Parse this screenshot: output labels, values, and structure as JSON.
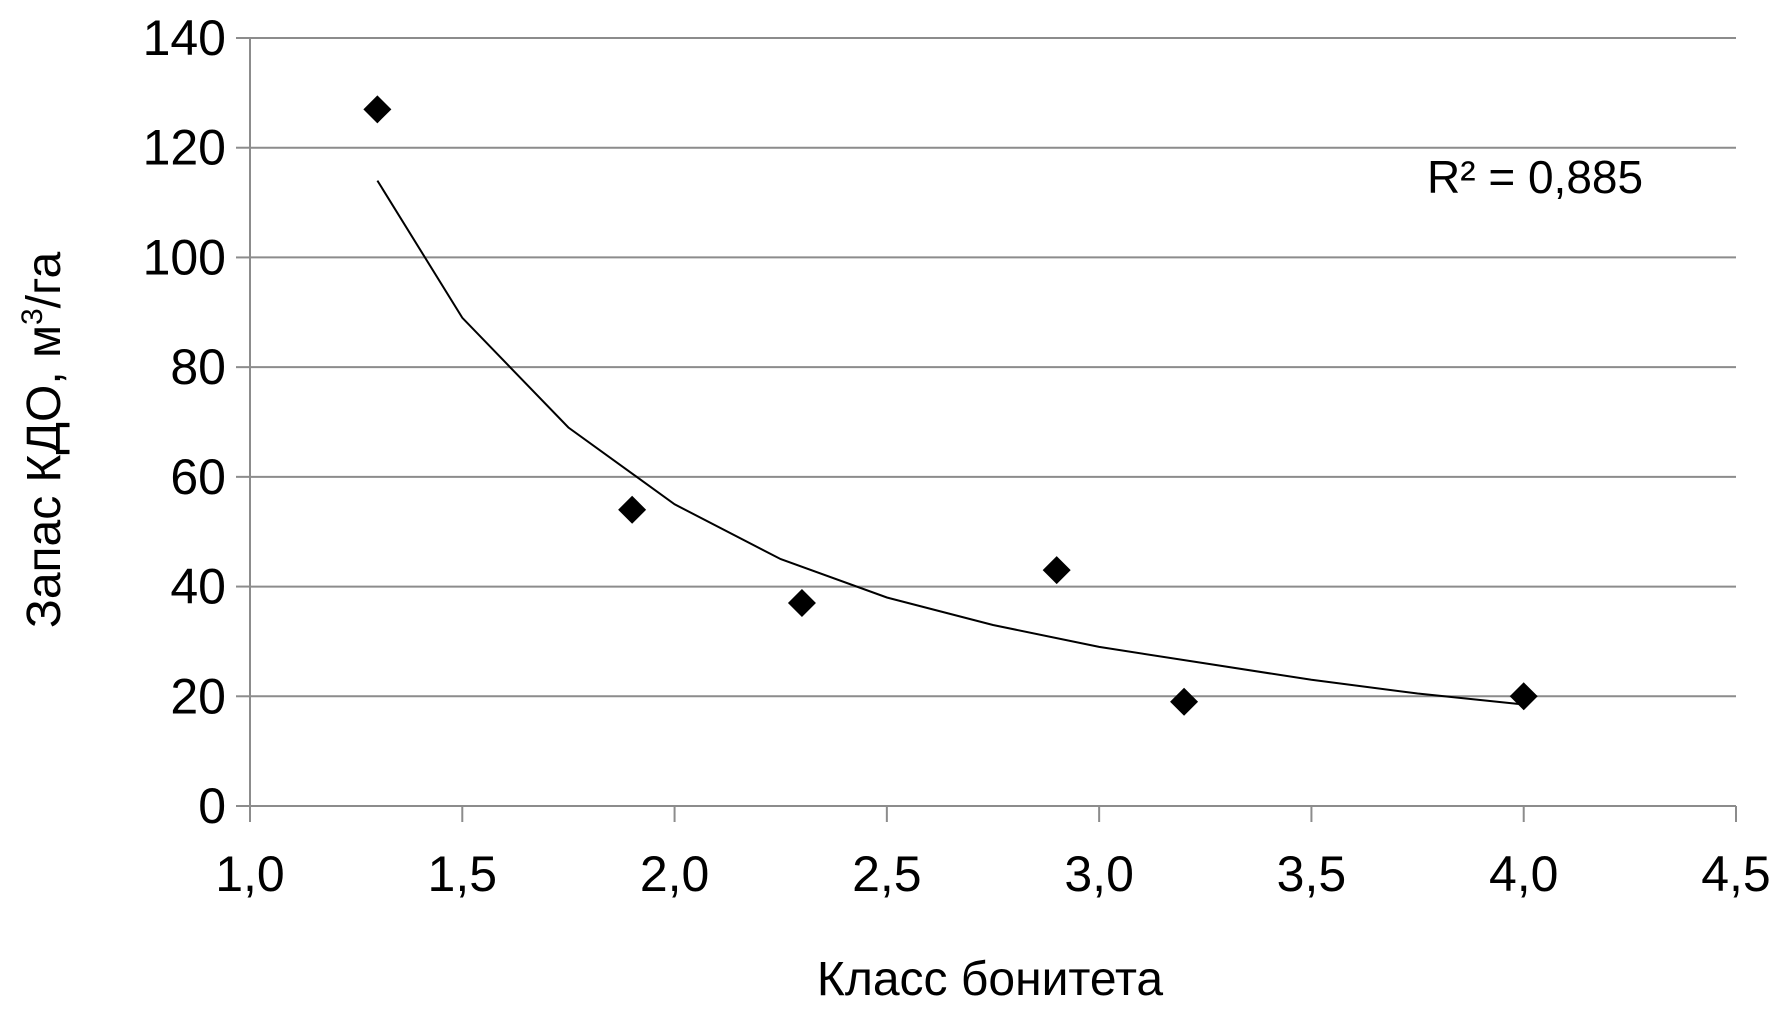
{
  "chart_data": {
    "type": "scatter",
    "title": "",
    "xlabel": "Класс бонитета",
    "ylabel_main": "Запас КДО, м",
    "ylabel_sup": "3",
    "ylabel_tail": "/га",
    "xlim": [
      1.0,
      4.5
    ],
    "ylim": [
      0,
      140
    ],
    "x_ticks": [
      1.0,
      1.5,
      2.0,
      2.5,
      3.0,
      3.5,
      4.0,
      4.5
    ],
    "x_tick_labels": [
      "1,0",
      "1,5",
      "2,0",
      "2,5",
      "3,0",
      "3,5",
      "4,0",
      "4,5"
    ],
    "y_ticks": [
      0,
      20,
      40,
      60,
      80,
      100,
      120,
      140
    ],
    "y_tick_labels": [
      "0",
      "20",
      "40",
      "60",
      "80",
      "100",
      "120",
      "140"
    ],
    "grid": "horizontal",
    "marker": "diamond",
    "marker_color": "#000000",
    "series": [
      {
        "points": [
          {
            "x": 1.3,
            "y": 127
          },
          {
            "x": 1.9,
            "y": 54
          },
          {
            "x": 2.3,
            "y": 37
          },
          {
            "x": 2.9,
            "y": 43
          },
          {
            "x": 3.2,
            "y": 19
          },
          {
            "x": 4.0,
            "y": 20
          }
        ]
      }
    ],
    "trendline": {
      "type": "power",
      "x_range": [
        1.3,
        4.0
      ],
      "points": [
        {
          "x": 1.3,
          "y": 114
        },
        {
          "x": 1.5,
          "y": 89
        },
        {
          "x": 1.75,
          "y": 69
        },
        {
          "x": 2.0,
          "y": 55
        },
        {
          "x": 2.25,
          "y": 45
        },
        {
          "x": 2.5,
          "y": 38
        },
        {
          "x": 2.75,
          "y": 33
        },
        {
          "x": 3.0,
          "y": 29
        },
        {
          "x": 3.25,
          "y": 26
        },
        {
          "x": 3.5,
          "y": 23
        },
        {
          "x": 3.75,
          "y": 20.5
        },
        {
          "x": 4.0,
          "y": 18.5
        }
      ]
    },
    "annotation": "R² = 0,885"
  }
}
